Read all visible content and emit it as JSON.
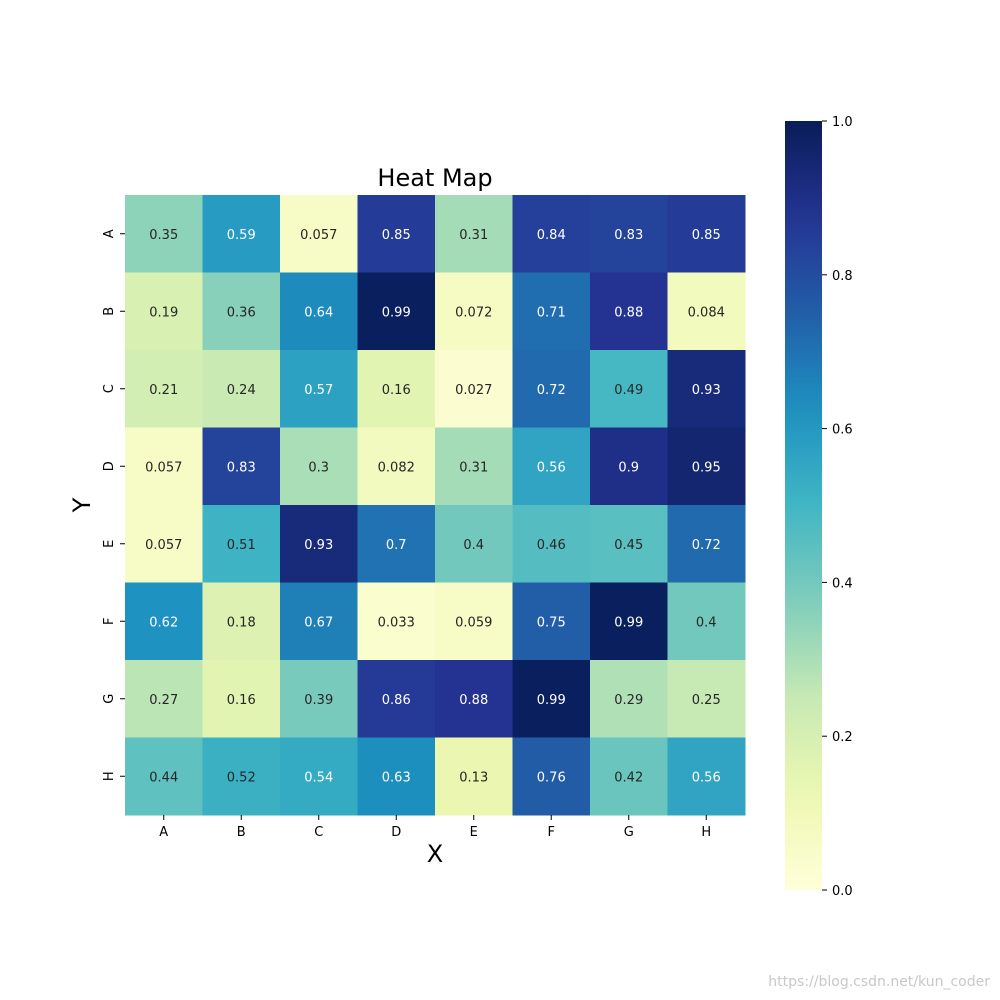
{
  "chart_data": {
    "type": "heatmap",
    "title": "Heat Map",
    "xlabel": "X",
    "ylabel": "Y",
    "x_categories": [
      "A",
      "B",
      "C",
      "D",
      "E",
      "F",
      "G",
      "H"
    ],
    "y_categories": [
      "A",
      "B",
      "C",
      "D",
      "E",
      "F",
      "G",
      "H"
    ],
    "values": [
      [
        0.35,
        0.59,
        0.057,
        0.85,
        0.31,
        0.84,
        0.83,
        0.85
      ],
      [
        0.19,
        0.36,
        0.64,
        0.99,
        0.072,
        0.71,
        0.88,
        0.084
      ],
      [
        0.21,
        0.24,
        0.57,
        0.16,
        0.027,
        0.72,
        0.49,
        0.93
      ],
      [
        0.057,
        0.83,
        0.3,
        0.082,
        0.31,
        0.56,
        0.9,
        0.95
      ],
      [
        0.057,
        0.51,
        0.93,
        0.7,
        0.4,
        0.46,
        0.45,
        0.72
      ],
      [
        0.62,
        0.18,
        0.67,
        0.033,
        0.059,
        0.75,
        0.99,
        0.4
      ],
      [
        0.27,
        0.16,
        0.39,
        0.86,
        0.88,
        0.99,
        0.29,
        0.25
      ],
      [
        0.44,
        0.52,
        0.54,
        0.63,
        0.13,
        0.76,
        0.42,
        0.56
      ]
    ],
    "colormap": "YlGnBu",
    "colorbar": {
      "range": [
        0.0,
        1.0
      ],
      "ticks": [
        "0.0",
        "0.2",
        "0.4",
        "0.6",
        "0.8",
        "1.0"
      ]
    },
    "annotate": true
  },
  "watermark": "https://blog.csdn.net/kun_coder"
}
